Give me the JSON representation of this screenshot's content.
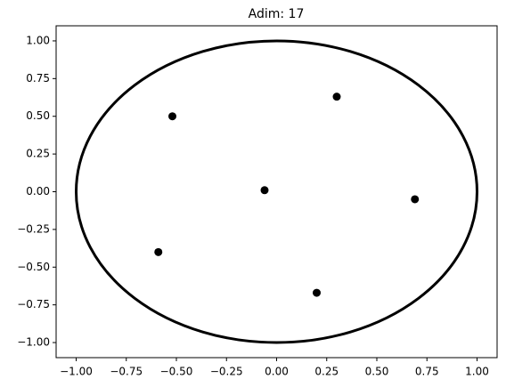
{
  "chart_data": {
    "type": "scatter",
    "title": "Adim: 17",
    "x": [
      -0.52,
      0.3,
      -0.06,
      0.69,
      -0.59,
      0.2
    ],
    "values": [
      0.5,
      0.63,
      0.01,
      -0.05,
      -0.4,
      -0.67
    ],
    "color": "#000000",
    "circle": {
      "center": [
        0,
        0
      ],
      "radius": 1,
      "color": "#000000"
    },
    "xlim": [
      -1.1,
      1.1
    ],
    "ylim": [
      -1.1,
      1.1
    ],
    "xticks": [
      {
        "value": -1,
        "label": "−1.00"
      },
      {
        "value": -0.75,
        "label": "−0.75"
      },
      {
        "value": -0.5,
        "label": "−0.50"
      },
      {
        "value": -0.25,
        "label": "−0.25"
      },
      {
        "value": 0,
        "label": "0.00"
      },
      {
        "value": 0.25,
        "label": "0.25"
      },
      {
        "value": 0.5,
        "label": "0.50"
      },
      {
        "value": 0.75,
        "label": "0.75"
      },
      {
        "value": 1,
        "label": "1.00"
      }
    ],
    "yticks": [
      {
        "value": -1,
        "label": "−1.00"
      },
      {
        "value": -0.75,
        "label": "−0.75"
      },
      {
        "value": -0.5,
        "label": "−0.50"
      },
      {
        "value": -0.25,
        "label": "−0.25"
      },
      {
        "value": 0,
        "label": "0.00"
      },
      {
        "value": 0.25,
        "label": "0.25"
      },
      {
        "value": 0.5,
        "label": "0.50"
      },
      {
        "value": 0.75,
        "label": "0.75"
      },
      {
        "value": 1,
        "label": "1.00"
      }
    ],
    "grid": false
  }
}
